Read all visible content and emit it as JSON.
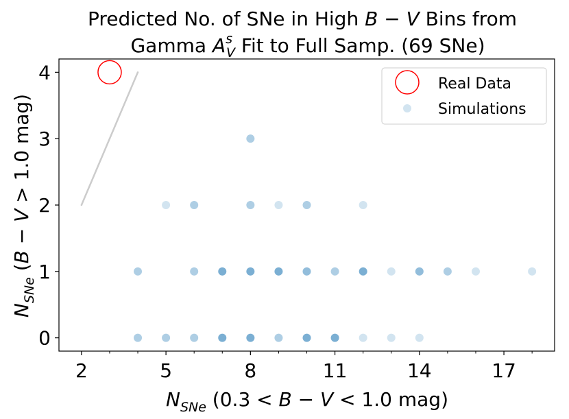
{
  "chart_data": {
    "type": "scatter",
    "title_line1": "Predicted No. of SNe in High B − V Bins from",
    "title_line2": "Gamma A_V^s Fit to Full Samp. (69 SNe)",
    "xlabel": "N_SNe (0.3 < B − V < 1.0 mag)",
    "ylabel": "N_SNe (B − V > 1.0 mag)",
    "xlim": [
      1.2,
      18.8
    ],
    "ylim": [
      -0.2,
      4.2
    ],
    "xticks": [
      2,
      5,
      8,
      11,
      14,
      17
    ],
    "xminor_ticks": [
      3,
      4,
      6,
      7,
      9,
      10,
      12,
      13,
      15,
      16,
      18
    ],
    "yticks": [
      0,
      1,
      2,
      3,
      4
    ],
    "legend": {
      "position": "top-right",
      "entries": [
        "Real Data",
        "Simulations"
      ]
    },
    "reference_line": {
      "x": [
        2,
        4
      ],
      "y": [
        2,
        4
      ],
      "color": "#cccccc"
    },
    "real_data": {
      "name": "Real Data",
      "x": 3,
      "y": 4,
      "color": "#ff0000"
    },
    "simulations": {
      "name": "Simulations",
      "color": "#1f77b4",
      "points": [
        {
          "x": 8,
          "y": 3,
          "n": 2
        },
        {
          "x": 5,
          "y": 2,
          "n": 1
        },
        {
          "x": 6,
          "y": 2,
          "n": 2
        },
        {
          "x": 8,
          "y": 2,
          "n": 2
        },
        {
          "x": 9,
          "y": 2,
          "n": 1
        },
        {
          "x": 10,
          "y": 2,
          "n": 2
        },
        {
          "x": 12,
          "y": 2,
          "n": 1
        },
        {
          "x": 4,
          "y": 1,
          "n": 2
        },
        {
          "x": 6,
          "y": 1,
          "n": 2
        },
        {
          "x": 7,
          "y": 1,
          "n": 4
        },
        {
          "x": 8,
          "y": 1,
          "n": 4
        },
        {
          "x": 9,
          "y": 1,
          "n": 4
        },
        {
          "x": 10,
          "y": 1,
          "n": 3
        },
        {
          "x": 11,
          "y": 1,
          "n": 2
        },
        {
          "x": 12,
          "y": 1,
          "n": 4
        },
        {
          "x": 13,
          "y": 1,
          "n": 1
        },
        {
          "x": 14,
          "y": 1,
          "n": 3
        },
        {
          "x": 15,
          "y": 1,
          "n": 2
        },
        {
          "x": 16,
          "y": 1,
          "n": 1
        },
        {
          "x": 18,
          "y": 1,
          "n": 1
        },
        {
          "x": 4,
          "y": 0,
          "n": 2
        },
        {
          "x": 5,
          "y": 0,
          "n": 2
        },
        {
          "x": 6,
          "y": 0,
          "n": 2
        },
        {
          "x": 7,
          "y": 0,
          "n": 4
        },
        {
          "x": 8,
          "y": 0,
          "n": 4
        },
        {
          "x": 9,
          "y": 0,
          "n": 2
        },
        {
          "x": 10,
          "y": 0,
          "n": 4
        },
        {
          "x": 11,
          "y": 0,
          "n": 4
        },
        {
          "x": 12,
          "y": 0,
          "n": 1
        },
        {
          "x": 13,
          "y": 0,
          "n": 1
        },
        {
          "x": 14,
          "y": 0,
          "n": 1
        }
      ]
    }
  }
}
